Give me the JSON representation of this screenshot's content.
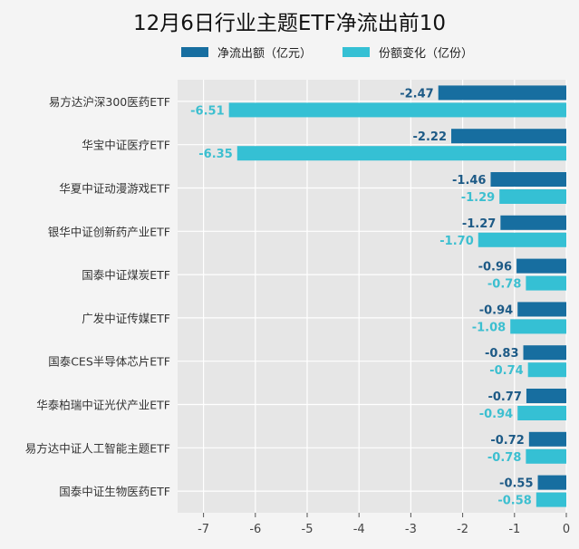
{
  "chart_data": {
    "type": "bar",
    "orientation": "horizontal",
    "title": "12月6日行业主题ETF净流出前10",
    "categories": [
      "易方达沪深300医药ETF",
      "华宝中证医疗ETF",
      "华夏中证动漫游戏ETF",
      "银华中证创新药产业ETF",
      "国泰中证煤炭ETF",
      "广发中证传媒ETF",
      "国泰CES半导体芯片ETF",
      "华泰柏瑞中证光伏产业ETF",
      "易方达中证人工智能主题ETF",
      "国泰中证生物医药ETF"
    ],
    "series": [
      {
        "name": "净流出额（亿元）",
        "color": "#176ea0",
        "values": [
          -2.47,
          -2.22,
          -1.46,
          -1.27,
          -0.96,
          -0.94,
          -0.83,
          -0.77,
          -0.72,
          -0.55
        ]
      },
      {
        "name": "份额变化（亿份）",
        "color": "#35c0d4",
        "values": [
          -6.51,
          -6.35,
          -1.29,
          -1.7,
          -0.78,
          -1.08,
          -0.74,
          -0.94,
          -0.78,
          -0.58
        ]
      }
    ],
    "xlim": [
      -7.5,
      0
    ],
    "xticks": [
      -7,
      -6,
      -5,
      -4,
      -3,
      -2,
      -1,
      0
    ],
    "grid": true,
    "legend": "top",
    "xlabel": "",
    "ylabel": ""
  }
}
